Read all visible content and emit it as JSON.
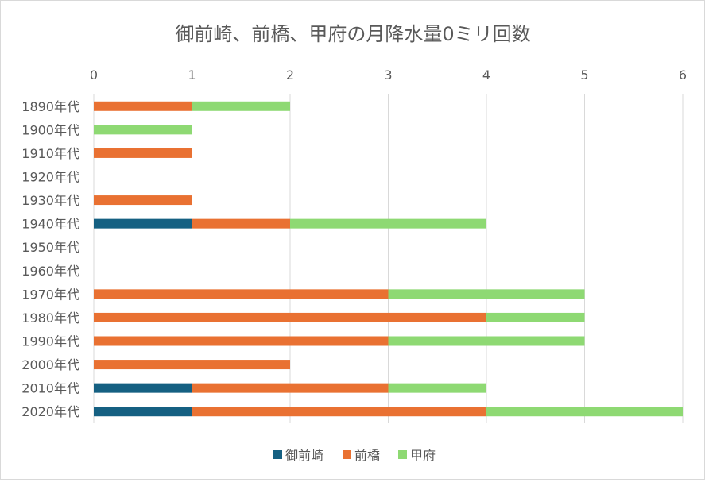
{
  "chart_data": {
    "type": "bar",
    "orientation": "horizontal",
    "stacked": true,
    "title": "御前崎、前橋、甲府の月降水量0ミリ回数",
    "xlabel": "",
    "ylabel": "",
    "xlim": [
      0,
      6
    ],
    "xticks": [
      "0",
      "1",
      "2",
      "3",
      "4",
      "5",
      "6"
    ],
    "grid": true,
    "legend_position": "bottom",
    "categories": [
      "1890年代",
      "1900年代",
      "1910年代",
      "1920年代",
      "1930年代",
      "1940年代",
      "1950年代",
      "1960年代",
      "1970年代",
      "1980年代",
      "1990年代",
      "2000年代",
      "2010年代",
      "2020年代"
    ],
    "series": [
      {
        "name": "御前崎",
        "color": "#156082",
        "values": [
          0,
          0,
          0,
          0,
          0,
          1,
          0,
          0,
          0,
          0,
          0,
          0,
          1,
          1
        ]
      },
      {
        "name": "前橋",
        "color": "#E97132",
        "values": [
          1,
          0,
          1,
          0,
          1,
          1,
          0,
          0,
          3,
          4,
          3,
          2,
          2,
          3
        ]
      },
      {
        "name": "甲府",
        "color": "#8ED973",
        "values": [
          1,
          1,
          0,
          0,
          0,
          2,
          0,
          0,
          2,
          1,
          2,
          0,
          1,
          2
        ]
      }
    ]
  }
}
